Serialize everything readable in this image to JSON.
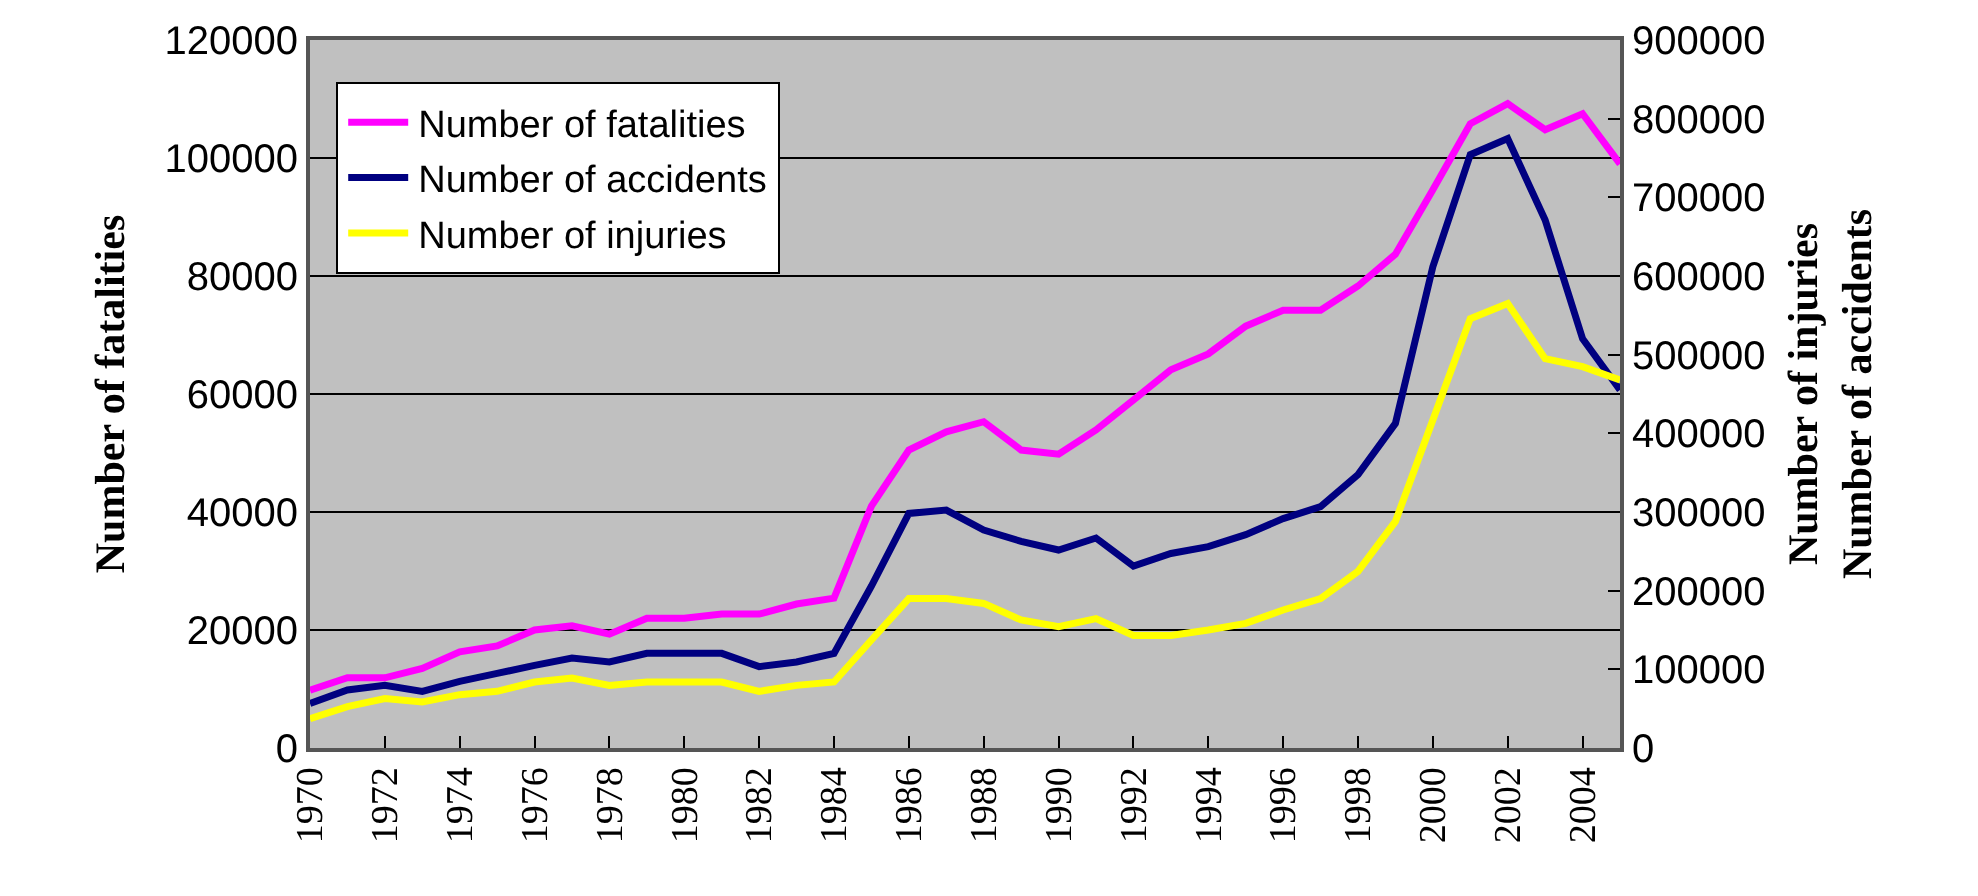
{
  "chart_data": {
    "type": "line",
    "ylabel": "Number of fatalities",
    "y2label": "Number of injuries\nNumber of accidents",
    "x": [
      1970,
      1971,
      1972,
      1973,
      1974,
      1975,
      1976,
      1977,
      1978,
      1979,
      1980,
      1981,
      1982,
      1983,
      1984,
      1985,
      1986,
      1987,
      1988,
      1989,
      1990,
      1991,
      1992,
      1993,
      1994,
      1995,
      1996,
      1997,
      1998,
      1999,
      2000,
      2001,
      2002,
      2003,
      2004,
      2005
    ],
    "series": [
      {
        "name": "Number of fatalities",
        "color": "#ff00ff",
        "values": [
          9800,
          11900,
          11900,
          13500,
          16300,
          17300,
          20000,
          20700,
          19300,
          22000,
          22000,
          22700,
          22700,
          24400,
          25400,
          41000,
          50500,
          53600,
          55300,
          50500,
          49800,
          53900,
          59000,
          64100,
          66800,
          71500,
          74200,
          74200,
          78300,
          83700,
          94600,
          105800,
          109200,
          104800,
          107500,
          99000
        ]
      },
      {
        "name": "Number of accidents",
        "color": "#000080",
        "axis": "y2",
        "values": [
          56700,
          73700,
          79600,
          72000,
          84700,
          94800,
          105000,
          114400,
          109300,
          120300,
          120300,
          120300,
          103400,
          109300,
          120300,
          205900,
          298200,
          302500,
          277100,
          262600,
          251700,
          266900,
          231300,
          247300,
          256000,
          271200,
          291600,
          306800,
          347500,
          412600,
          611800,
          754200,
          774600,
          671100,
          520300,
          455000
        ]
      },
      {
        "name": "Number of injuries",
        "color": "#ffff00",
        "axis": "y2",
        "values": [
          37300,
          52600,
          62800,
          58500,
          67800,
          72000,
          83900,
          89000,
          79600,
          83900,
          83900,
          83900,
          72000,
          79600,
          83900,
          137300,
          189900,
          189900,
          183800,
          162700,
          154300,
          164500,
          143100,
          143100,
          150000,
          158400,
          175400,
          189900,
          224500,
          288000,
          416900,
          545800,
          565100,
          494900,
          484800,
          467700
        ]
      }
    ],
    "xlim": [
      1970,
      2005
    ],
    "xticks": [
      1970,
      1972,
      1974,
      1976,
      1978,
      1980,
      1982,
      1984,
      1986,
      1988,
      1990,
      1992,
      1994,
      1996,
      1998,
      2000,
      2002,
      2004
    ],
    "ylim": [
      0,
      120000
    ],
    "yticks": [
      0,
      20000,
      40000,
      60000,
      80000,
      100000,
      120000
    ],
    "y2lim": [
      0,
      900000
    ],
    "y2ticks": [
      0,
      100000,
      200000,
      300000,
      400000,
      500000,
      600000,
      700000,
      800000,
      900000
    ],
    "grid": "y",
    "legend": "top left",
    "marker": "none",
    "line_style": "solid"
  }
}
